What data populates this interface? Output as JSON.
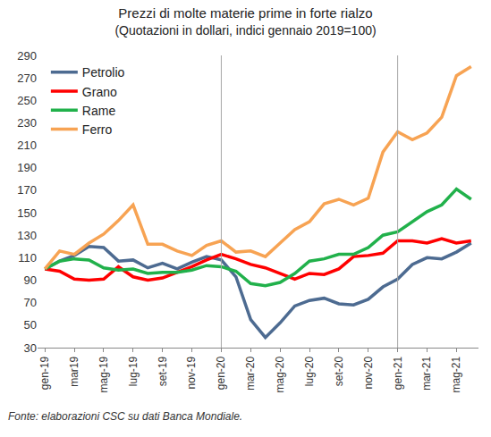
{
  "chart_data": {
    "type": "line",
    "title": "Prezzi di molte materie prime in forte rialzo",
    "subtitle": "(Quotazioni in dollari, indici gennaio 2019=100)",
    "source": "Fonte: elaborazioni CSC su dati Banca Mondiale.",
    "categories": [
      "gen-19",
      null,
      "mar19",
      null,
      "mag-19",
      null,
      "lug-19",
      null,
      "set-19",
      null,
      "nov-19",
      null,
      "gen-20",
      null,
      "mar-20",
      null,
      "mag-20",
      null,
      "lug-20",
      null,
      "set-20",
      null,
      "nov-20",
      null,
      "gen-21",
      null,
      "mar-21",
      null,
      "mag-21",
      null
    ],
    "series": [
      {
        "name": "Petrolio",
        "color": "#4d6b91",
        "values": [
          100,
          107,
          112,
          120,
          119,
          107,
          108,
          101,
          105,
          100,
          106,
          111,
          108,
          93,
          55,
          39,
          52,
          67,
          72,
          74,
          69,
          68,
          73,
          84,
          91,
          104,
          110,
          109,
          115,
          123
        ]
      },
      {
        "name": "Grano",
        "color": "#ff0000",
        "values": [
          100,
          98,
          91,
          90,
          91,
          102,
          93,
          90,
          92,
          97,
          102,
          108,
          113,
          109,
          104,
          101,
          96,
          91,
          96,
          95,
          100,
          111,
          112,
          114,
          125,
          125,
          123,
          127,
          123,
          125
        ]
      },
      {
        "name": "Rame",
        "color": "#21b14b",
        "values": [
          100,
          107,
          109,
          108,
          101,
          99,
          100,
          96,
          97,
          97,
          99,
          103,
          102,
          98,
          87,
          85,
          88,
          96,
          107,
          109,
          113,
          113,
          119,
          130,
          133,
          142,
          151,
          157,
          171,
          162
        ]
      },
      {
        "name": "Ferro",
        "color": "#f7a353",
        "values": [
          100,
          116,
          113,
          123,
          131,
          143,
          157,
          122,
          122,
          116,
          112,
          121,
          125,
          115,
          116,
          111,
          123,
          135,
          142,
          158,
          162,
          157,
          163,
          204,
          222,
          215,
          221,
          235,
          272,
          280
        ]
      }
    ],
    "ylim": [
      30,
      290
    ],
    "yticks": [
      30,
      50,
      70,
      90,
      110,
      130,
      150,
      170,
      190,
      210,
      230,
      250,
      270,
      290
    ],
    "grid": false,
    "legend": "top-left"
  }
}
